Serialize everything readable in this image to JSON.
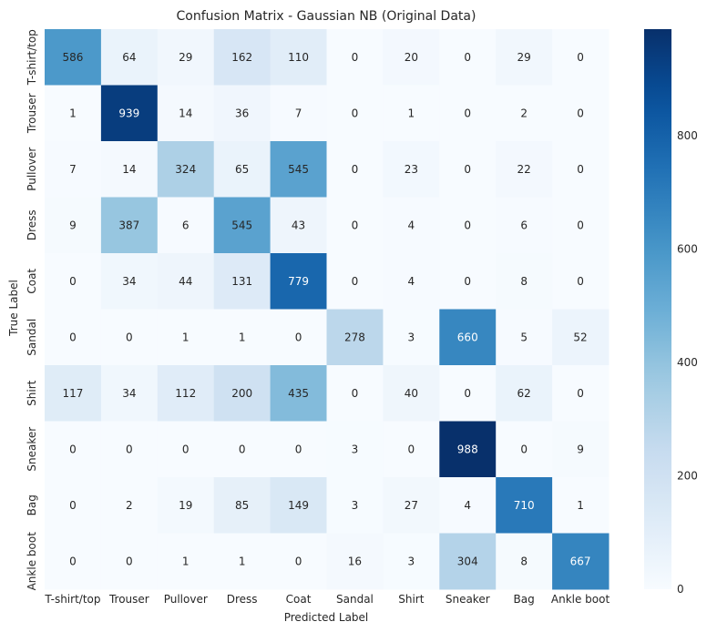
{
  "chart_data": {
    "type": "heatmap",
    "title": "Confusion Matrix - Gaussian NB (Original Data)",
    "xlabel": "Predicted Label",
    "ylabel": "True Label",
    "x_categories": [
      "T-shirt/top",
      "Trouser",
      "Pullover",
      "Dress",
      "Coat",
      "Sandal",
      "Shirt",
      "Sneaker",
      "Bag",
      "Ankle boot"
    ],
    "y_categories": [
      "T-shirt/top",
      "Trouser",
      "Pullover",
      "Dress",
      "Coat",
      "Sandal",
      "Shirt",
      "Sneaker",
      "Bag",
      "Ankle boot"
    ],
    "values": [
      [
        586,
        64,
        29,
        162,
        110,
        0,
        20,
        0,
        29,
        0
      ],
      [
        1,
        939,
        14,
        36,
        7,
        0,
        1,
        0,
        2,
        0
      ],
      [
        7,
        14,
        324,
        65,
        545,
        0,
        23,
        0,
        22,
        0
      ],
      [
        9,
        387,
        6,
        545,
        43,
        0,
        4,
        0,
        6,
        0
      ],
      [
        0,
        34,
        44,
        131,
        779,
        0,
        4,
        0,
        8,
        0
      ],
      [
        0,
        0,
        1,
        1,
        0,
        278,
        3,
        660,
        5,
        52
      ],
      [
        117,
        34,
        112,
        200,
        435,
        0,
        40,
        0,
        62,
        0
      ],
      [
        0,
        0,
        0,
        0,
        0,
        3,
        0,
        988,
        0,
        9
      ],
      [
        0,
        2,
        19,
        85,
        149,
        3,
        27,
        4,
        710,
        1
      ],
      [
        0,
        0,
        1,
        1,
        0,
        16,
        3,
        304,
        8,
        667
      ]
    ],
    "colormap": "Blues",
    "colorbar": {
      "ticks": [
        0,
        200,
        400,
        600,
        800
      ],
      "range": [
        0,
        988
      ]
    },
    "grid": false
  }
}
